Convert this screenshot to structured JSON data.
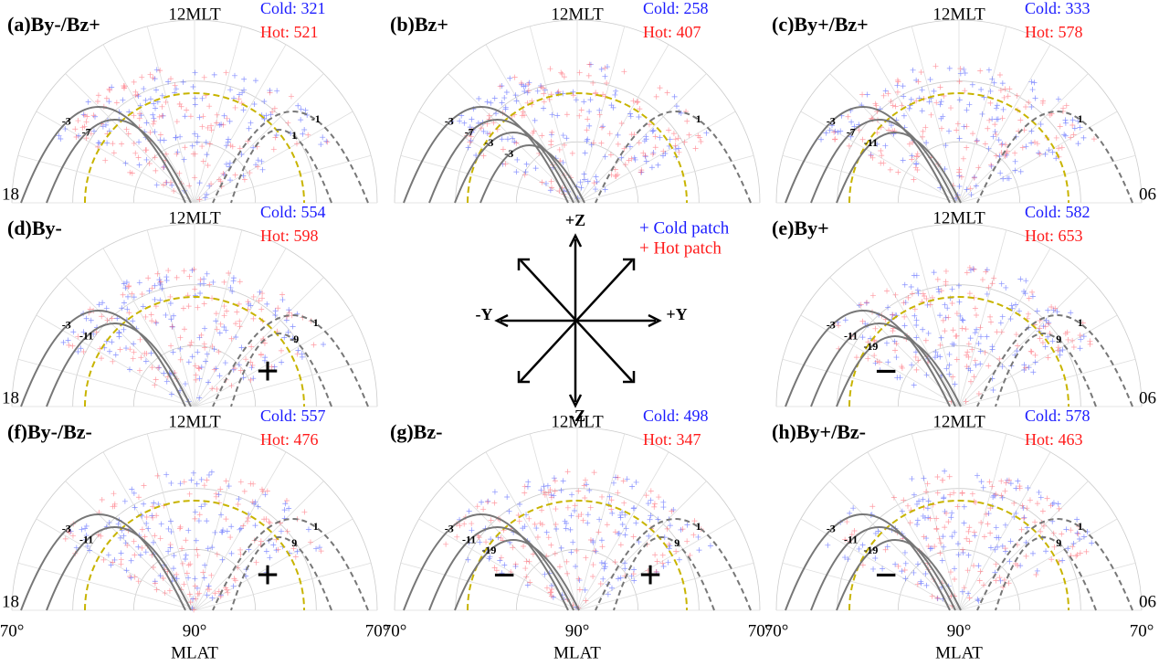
{
  "panels": [
    {
      "label": "(a)By-/Bz+",
      "top": "12MLT",
      "cold": "Cold: 321",
      "hot": "Hot: 521",
      "neg": [
        "-3",
        "-7"
      ],
      "pos": [
        "-1",
        "1"
      ],
      "signs": [],
      "left": "18"
    },
    {
      "label": "(b)Bz+",
      "top": "12MLT",
      "cold": "Cold: 258",
      "hot": "Hot: 407",
      "neg": [
        "-3",
        "-7",
        "-3",
        "-3"
      ],
      "pos": [
        "1"
      ],
      "signs": []
    },
    {
      "label": "(c)By+/Bz+",
      "top": "12MLT",
      "cold": "Cold: 333",
      "hot": "Hot: 578",
      "neg": [
        "-3",
        "-7",
        "-11"
      ],
      "pos": [
        "1"
      ],
      "signs": [],
      "right": "06"
    },
    {
      "label": "(d)By-",
      "top": "12MLT",
      "cold": "Cold: 554",
      "hot": "Hot: 598",
      "neg": [
        "-3",
        "-11"
      ],
      "pos": [
        "1",
        "-9"
      ],
      "signs": [
        "+"
      ],
      "left": "18"
    },
    {
      "label": "(e)By+",
      "top": "12MLT",
      "cold": "Cold: 582",
      "hot": "Hot: 653",
      "neg": [
        "-3",
        "-11",
        "-19"
      ],
      "pos": [
        "1",
        "9"
      ],
      "signs": [
        "−"
      ],
      "right": "06"
    },
    {
      "label": "(f)By-/Bz-",
      "top": "12MLT",
      "cold": "Cold: 557",
      "hot": "Hot: 476",
      "neg": [
        "-3",
        "-11"
      ],
      "pos": [
        "1",
        "9"
      ],
      "signs": [
        "+"
      ],
      "left": "18"
    },
    {
      "label": "(g)Bz-",
      "top": "12MLT",
      "cold": "Cold: 498",
      "hot": "Hot: 347",
      "neg": [
        "-3",
        "-11",
        "-19"
      ],
      "pos": [
        "1",
        "9"
      ],
      "signs": [
        "−",
        "+"
      ]
    },
    {
      "label": "(h)By+/Bz-",
      "top": "12MLT",
      "cold": "Cold: 578",
      "hot": "Hot: 463",
      "neg": [
        "-3",
        "-11",
        "-19"
      ],
      "pos": [
        "1",
        "9"
      ],
      "signs": [
        "−"
      ],
      "right": "06"
    }
  ],
  "axes": [
    {
      "left": "70°",
      "center": "90°",
      "right": "70°",
      "title": "MLAT"
    },
    {
      "left": "70°",
      "center": "90°",
      "right": "70°",
      "title": "MLAT"
    },
    {
      "left": "70°",
      "center": "90°",
      "right": "70°",
      "title": "MLAT"
    }
  ],
  "key": {
    "pz": "+Z",
    "nz": "-Z",
    "py": "+Y",
    "ny": "-Y",
    "cold": "+ Cold patch",
    "hot": "+ Hot patch"
  }
}
